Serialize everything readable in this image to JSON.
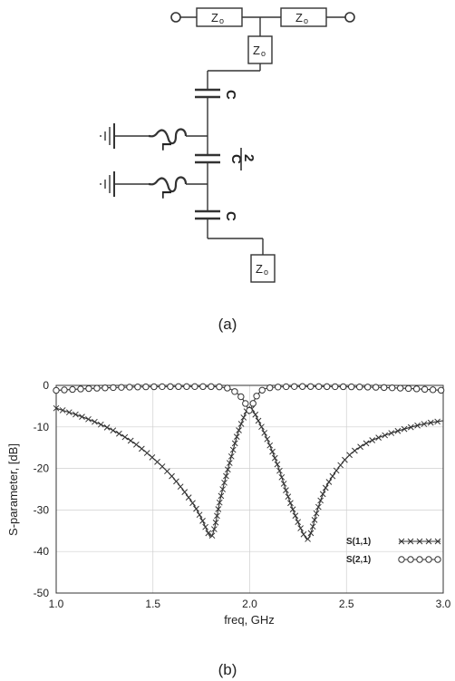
{
  "circuit": {
    "impedance_label": "Z",
    "impedance_sub": "o",
    "capacitor_label": "C",
    "half_cap_num": "C",
    "half_cap_den": "2",
    "inductor_label": "L"
  },
  "captions": {
    "a": "(a)",
    "b": "(b)"
  },
  "colors": {
    "ink": "#333333",
    "grid": "#cfcfcf"
  },
  "chart_data": {
    "type": "line",
    "title": "",
    "xlabel": "freq, GHz",
    "ylabel": "S-parameter, [dB]",
    "xlim": [
      1.0,
      3.0
    ],
    "ylim": [
      -50,
      0
    ],
    "xticks": [
      "1.0",
      "1.5",
      "2.0",
      "2.5",
      "3.0"
    ],
    "yticks": [
      "0",
      "-10",
      "-20",
      "-30",
      "-40",
      "-50"
    ],
    "grid": true,
    "legend": "bottom-right",
    "series": [
      {
        "name": "S(1,1)",
        "marker": "x",
        "x": [
          1.0,
          1.1,
          1.2,
          1.3,
          1.4,
          1.5,
          1.6,
          1.7,
          1.75,
          1.78,
          1.8,
          1.82,
          1.85,
          1.9,
          1.95,
          2.0,
          2.05,
          2.1,
          2.15,
          2.2,
          2.25,
          2.28,
          2.3,
          2.32,
          2.35,
          2.4,
          2.5,
          2.6,
          2.7,
          2.8,
          2.9,
          3.0
        ],
        "y": [
          -5.5,
          -7,
          -8.8,
          -11,
          -13.8,
          -17.5,
          -22,
          -28,
          -32,
          -35,
          -36.5,
          -34,
          -27,
          -18,
          -10,
          -5.5,
          -9,
          -14,
          -20,
          -27,
          -33,
          -36,
          -37,
          -35,
          -30,
          -24,
          -17.5,
          -14,
          -12,
          -10.5,
          -9.3,
          -8.5
        ]
      },
      {
        "name": "S(2,1)",
        "marker": "o",
        "x": [
          1.0,
          1.2,
          1.4,
          1.6,
          1.8,
          1.85,
          1.9,
          1.95,
          1.98,
          2.0,
          2.03,
          2.06,
          2.1,
          2.2,
          2.4,
          2.6,
          2.8,
          3.0
        ],
        "y": [
          -1.2,
          -0.7,
          -0.4,
          -0.3,
          -0.3,
          -0.4,
          -0.9,
          -2.5,
          -4.5,
          -6,
          -3,
          -1.3,
          -0.6,
          -0.3,
          -0.3,
          -0.4,
          -0.7,
          -1.2
        ]
      }
    ]
  }
}
